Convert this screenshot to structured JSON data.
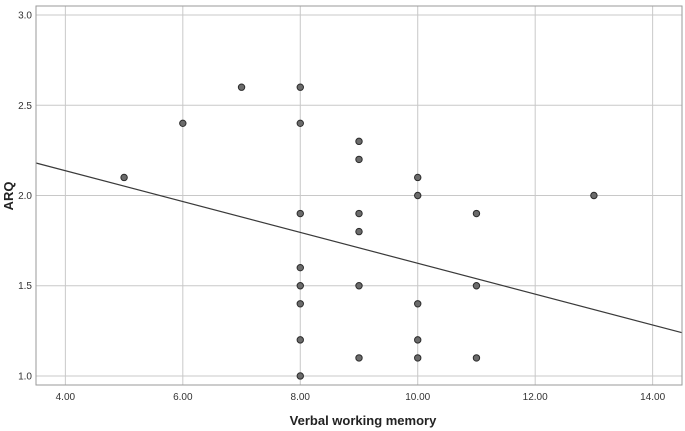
{
  "chart_data": {
    "type": "scatter",
    "title": "",
    "xlabel": "Verbal working memory",
    "ylabel": "ARQ",
    "xlim": [
      3.5,
      14.5
    ],
    "ylim": [
      0.95,
      3.05
    ],
    "x_ticks": [
      "4.00",
      "6.00",
      "8.00",
      "10.00",
      "12.00",
      "14.00"
    ],
    "y_ticks": [
      "1.0",
      "1.5",
      "2.0",
      "2.5",
      "3.0"
    ],
    "x_tick_values": [
      4,
      6,
      8,
      10,
      12,
      14
    ],
    "y_tick_values": [
      1.0,
      1.5,
      2.0,
      2.5,
      3.0
    ],
    "grid": true,
    "colors": {
      "point_fill": "#6b6b6b",
      "point_stroke": "#2b2b2b",
      "fit_line": "#3a3a3a",
      "grid": "#c8c8c8"
    },
    "points": [
      {
        "x": 5,
        "y": 2.1
      },
      {
        "x": 6,
        "y": 2.4
      },
      {
        "x": 7,
        "y": 2.6
      },
      {
        "x": 8,
        "y": 2.6
      },
      {
        "x": 8,
        "y": 2.4
      },
      {
        "x": 8,
        "y": 1.9
      },
      {
        "x": 8,
        "y": 1.6
      },
      {
        "x": 8,
        "y": 1.5
      },
      {
        "x": 8,
        "y": 1.4
      },
      {
        "x": 8,
        "y": 1.2
      },
      {
        "x": 8,
        "y": 1.0
      },
      {
        "x": 9,
        "y": 2.3
      },
      {
        "x": 9,
        "y": 2.2
      },
      {
        "x": 9,
        "y": 1.9
      },
      {
        "x": 9,
        "y": 1.8
      },
      {
        "x": 9,
        "y": 1.5
      },
      {
        "x": 9,
        "y": 1.1
      },
      {
        "x": 10,
        "y": 2.1
      },
      {
        "x": 10,
        "y": 2.0
      },
      {
        "x": 10,
        "y": 1.4
      },
      {
        "x": 10,
        "y": 1.2
      },
      {
        "x": 10,
        "y": 1.1
      },
      {
        "x": 11,
        "y": 1.9
      },
      {
        "x": 11,
        "y": 1.5
      },
      {
        "x": 11,
        "y": 1.1
      },
      {
        "x": 13,
        "y": 2.0
      }
    ],
    "fit_line": {
      "x": [
        3.5,
        14.5
      ],
      "y": [
        2.18,
        1.24
      ]
    }
  }
}
